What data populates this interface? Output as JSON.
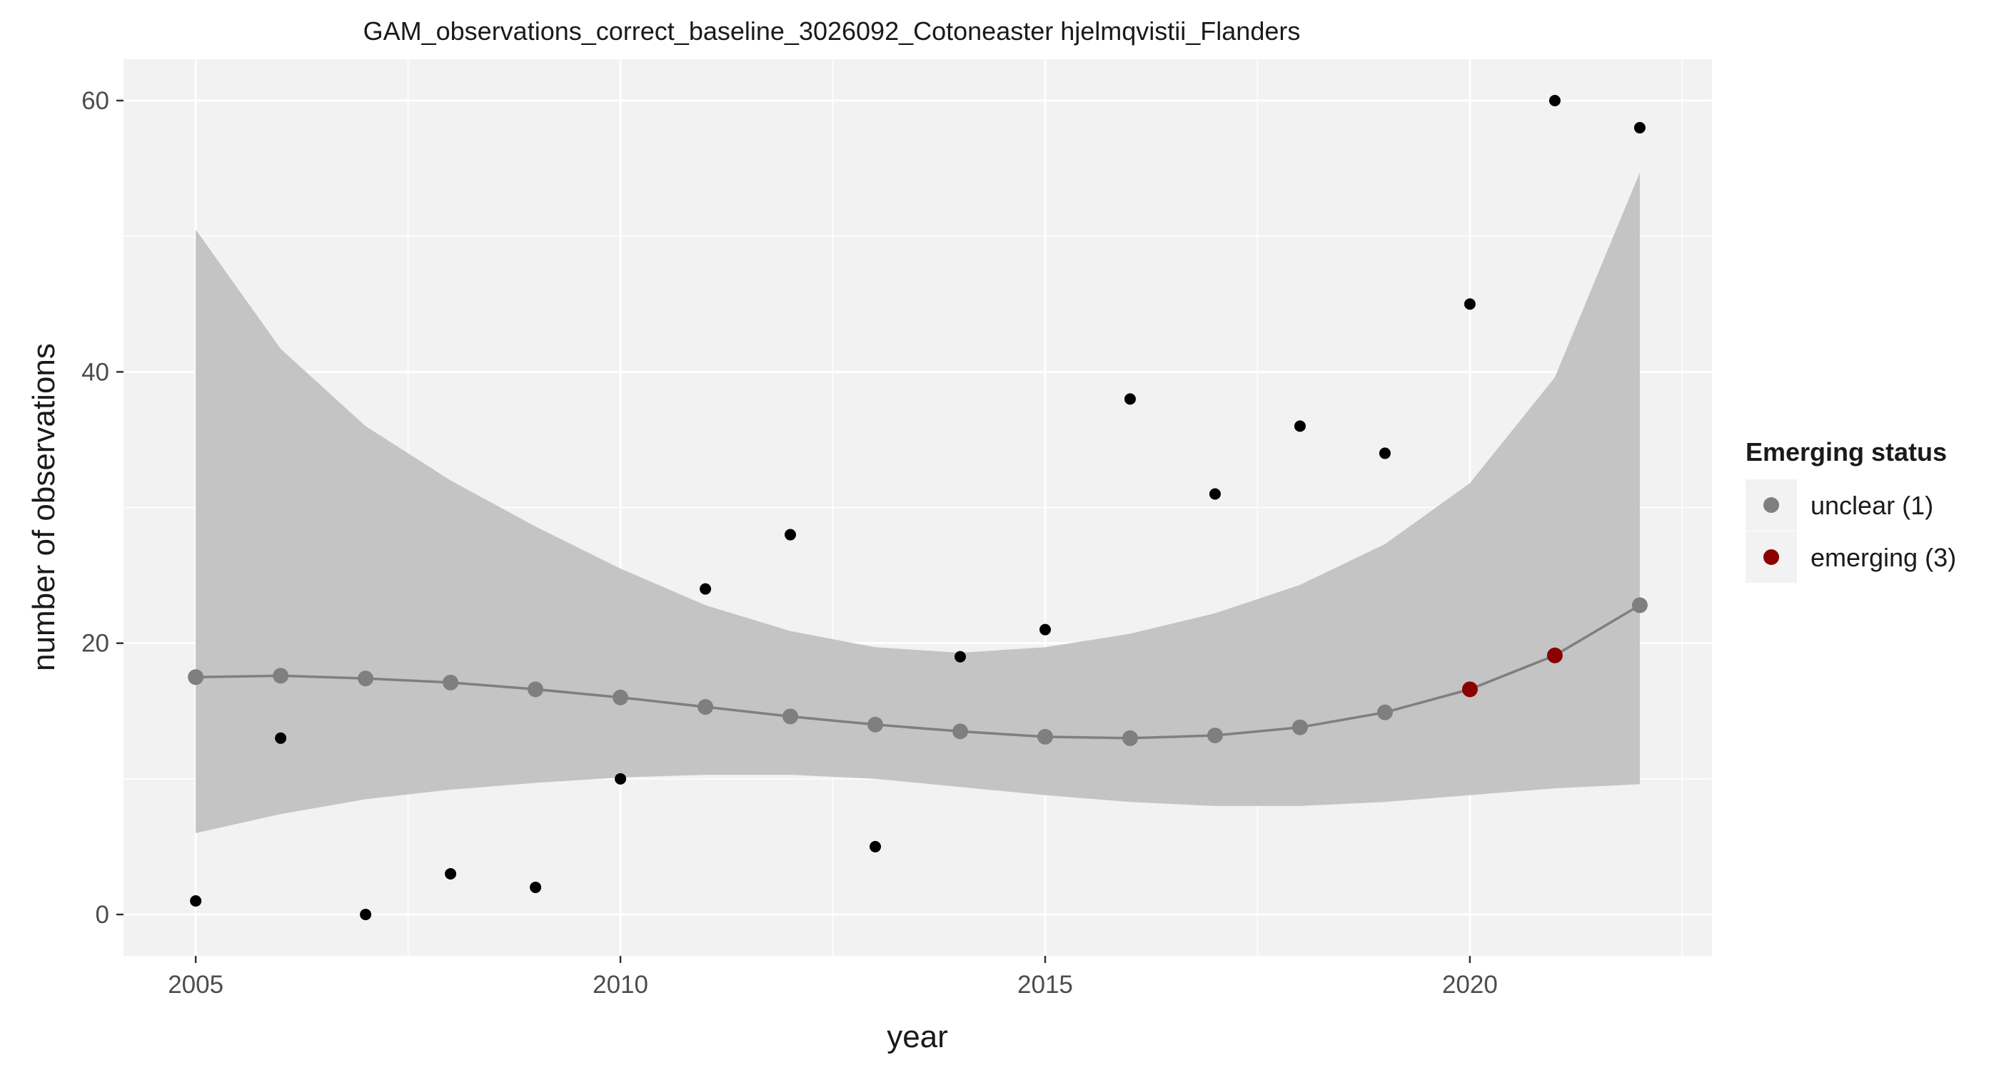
{
  "chart_data": {
    "type": "scatter",
    "title": "GAM_observations_correct_baseline_3026092_Cotoneaster hjelmqvistii_Flanders",
    "xlabel": "year",
    "ylabel": "number of observations",
    "xlim": [
      2004.15,
      2022.85
    ],
    "ylim": [
      -3.05,
      63.05
    ],
    "xticks": [
      2005,
      2010,
      2015,
      2020
    ],
    "yticks": [
      0,
      20,
      40,
      60
    ],
    "grid": true,
    "legend_position": "right",
    "colors": {
      "panel_bg": "#f2f2f2",
      "ribbon": "#c4c4c4",
      "fit_line": "#7f7f7f",
      "unclear": "#7f7f7f",
      "emerging": "#8b0000",
      "observed": "#000000"
    },
    "observed": {
      "x": [
        2005,
        2006,
        2007,
        2008,
        2009,
        2010,
        2011,
        2012,
        2013,
        2014,
        2015,
        2016,
        2017,
        2018,
        2019,
        2020,
        2021,
        2022
      ],
      "y": [
        1,
        13,
        0,
        3,
        2,
        10,
        24,
        28,
        5,
        19,
        21,
        38,
        31,
        36,
        34,
        45,
        60,
        58
      ]
    },
    "fit": {
      "x": [
        2005,
        2006,
        2007,
        2008,
        2009,
        2010,
        2011,
        2012,
        2013,
        2014,
        2015,
        2016,
        2017,
        2018,
        2019,
        2020,
        2021,
        2022
      ],
      "y": [
        17.5,
        17.6,
        17.4,
        17.1,
        16.6,
        16.0,
        15.3,
        14.6,
        14.0,
        13.5,
        13.1,
        13.0,
        13.2,
        13.8,
        14.9,
        16.6,
        19.1,
        22.8
      ],
      "status": [
        "unclear",
        "unclear",
        "unclear",
        "unclear",
        "unclear",
        "unclear",
        "unclear",
        "unclear",
        "unclear",
        "unclear",
        "unclear",
        "unclear",
        "unclear",
        "unclear",
        "unclear",
        "emerging",
        "emerging",
        "unclear"
      ],
      "lower": [
        6.0,
        7.4,
        8.5,
        9.2,
        9.7,
        10.1,
        10.3,
        10.3,
        10.0,
        9.4,
        8.8,
        8.3,
        8.0,
        8.0,
        8.3,
        8.8,
        9.3,
        9.6
      ],
      "upper": [
        50.5,
        41.7,
        36.0,
        32.0,
        28.6,
        25.5,
        22.8,
        20.9,
        19.7,
        19.3,
        19.7,
        20.7,
        22.2,
        24.3,
        27.3,
        31.8,
        39.6,
        54.7
      ]
    },
    "legend": {
      "title": "Emerging status",
      "entries": [
        {
          "key": "unclear",
          "label": "unclear (1)"
        },
        {
          "key": "emerging",
          "label": "emerging (3)"
        }
      ]
    }
  }
}
